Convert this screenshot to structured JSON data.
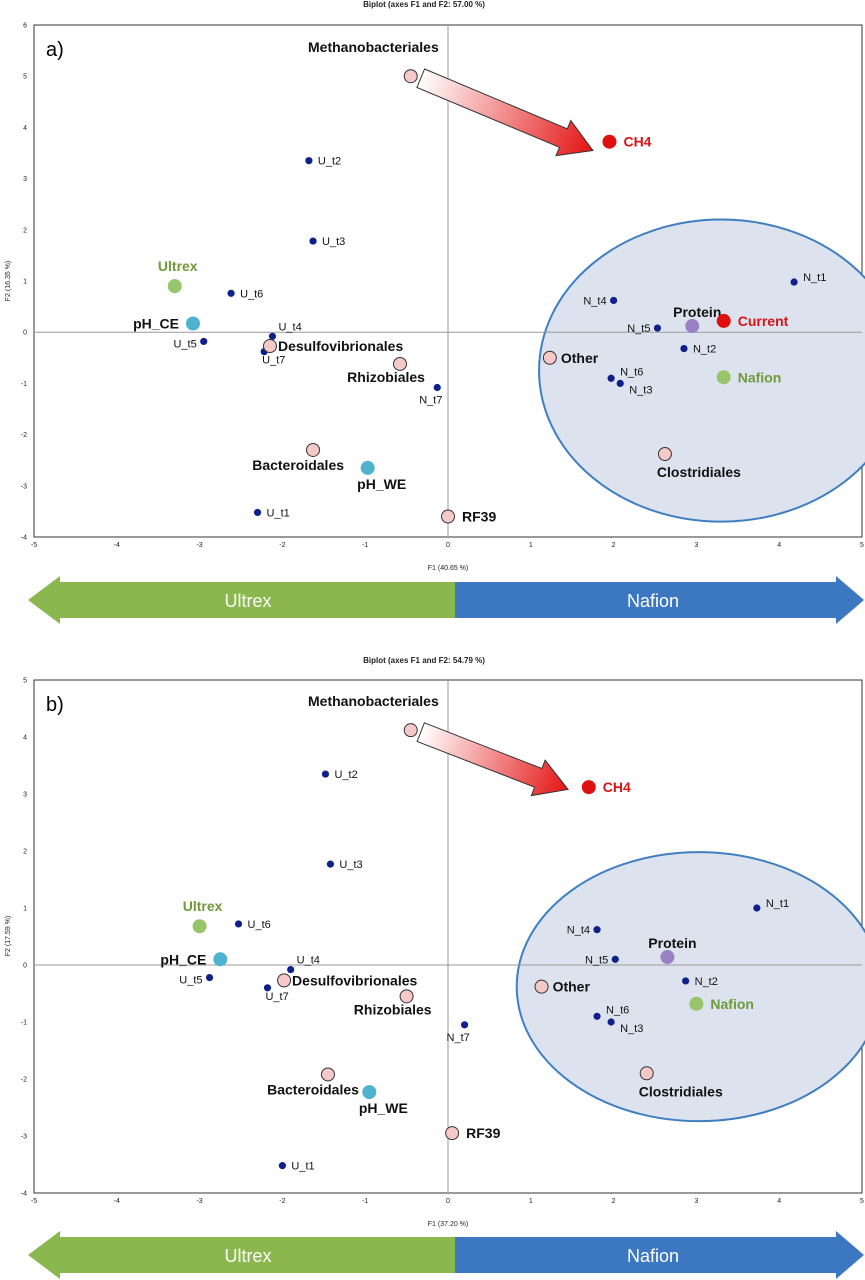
{
  "colors": {
    "green_marker": "#98c46a",
    "green_text": "#6f9a3a",
    "cyan_marker": "#4fb3cf",
    "red_marker": "#e01010",
    "red_text": "#d81414",
    "purple_marker": "#9a80c4",
    "pink_marker": "#f6c9c9",
    "observation": "#10208a",
    "band_left": "#8ab84e",
    "band_right": "#3c78c2",
    "ellipse_fill": "#dde3ee",
    "ellipse_stroke": "#3f7fbf"
  },
  "bands": [
    {
      "left_label": "Ultrex",
      "right_label": "Nafion"
    },
    {
      "left_label": "Ultrex",
      "right_label": "Nafion"
    }
  ],
  "chart_data": [
    {
      "type": "scatter",
      "panel_label": "a)",
      "title": "Biplot (axes F1 and F2: 57.00 %)",
      "xlabel": "F1 (40.65 %)",
      "ylabel": "F2 (16.35 %)",
      "xlim": [
        -5,
        5
      ],
      "ylim": [
        -4,
        6
      ],
      "xticks": [
        -5,
        -4,
        -3,
        -2,
        -1,
        0,
        1,
        2,
        3,
        4,
        5
      ],
      "yticks": [
        -4,
        -3,
        -2,
        -1,
        0,
        1,
        2,
        3,
        4,
        5,
        6
      ],
      "grid": false,
      "ellipse": {
        "cx": 3.3,
        "cy": -0.75,
        "rx": 2.2,
        "ry": 2.95
      },
      "arrow": {
        "from": [
          -0.45,
          5.0
        ],
        "to": [
          1.75,
          3.55
        ]
      },
      "observations": [
        {
          "label": "U_t2",
          "x": -1.68,
          "y": 3.35
        },
        {
          "label": "U_t3",
          "x": -1.63,
          "y": 1.78
        },
        {
          "label": "U_t6",
          "x": -2.62,
          "y": 0.76
        },
        {
          "label": "U_t4",
          "x": -2.12,
          "y": -0.08
        },
        {
          "label": "U_t5",
          "x": -2.95,
          "y": -0.18
        },
        {
          "label": "U_t7",
          "x": -2.22,
          "y": -0.38
        },
        {
          "label": "U_t1",
          "x": -2.3,
          "y": -3.52
        },
        {
          "label": "N_t7",
          "x": -0.13,
          "y": -1.08
        },
        {
          "label": "N_t1",
          "x": 4.18,
          "y": 0.98
        },
        {
          "label": "N_t4",
          "x": 2.0,
          "y": 0.62
        },
        {
          "label": "N_t5",
          "x": 2.53,
          "y": 0.08
        },
        {
          "label": "N_t2",
          "x": 2.85,
          "y": -0.32
        },
        {
          "label": "N_t6",
          "x": 1.97,
          "y": -0.9
        },
        {
          "label": "N_t3",
          "x": 2.08,
          "y": -1.0
        }
      ],
      "variables": [
        {
          "label": "Methanobacteriales",
          "x": -0.45,
          "y": 5.0,
          "kind": "pink"
        },
        {
          "label": "CH4",
          "x": 1.95,
          "y": 3.72,
          "kind": "red"
        },
        {
          "label": "Ultrex",
          "x": -3.3,
          "y": 0.9,
          "kind": "green"
        },
        {
          "label": "pH_CE",
          "x": -3.08,
          "y": 0.17,
          "kind": "cyan"
        },
        {
          "label": "Desulfovibrionales",
          "x": -2.15,
          "y": -0.27,
          "kind": "pink"
        },
        {
          "label": "Rhizobiales",
          "x": -0.58,
          "y": -0.62,
          "kind": "pink"
        },
        {
          "label": "Bacteroidales",
          "x": -1.63,
          "y": -2.3,
          "kind": "pink"
        },
        {
          "label": "pH_WE",
          "x": -0.97,
          "y": -2.65,
          "kind": "cyan"
        },
        {
          "label": "RF39",
          "x": 0.0,
          "y": -3.6,
          "kind": "pink"
        },
        {
          "label": "Other",
          "x": 1.23,
          "y": -0.5,
          "kind": "pink"
        },
        {
          "label": "Protein",
          "x": 2.95,
          "y": 0.12,
          "kind": "purple"
        },
        {
          "label": "Current",
          "x": 3.33,
          "y": 0.22,
          "kind": "red"
        },
        {
          "label": "Nafion",
          "x": 3.33,
          "y": -0.88,
          "kind": "green"
        },
        {
          "label": "Clostridiales",
          "x": 2.62,
          "y": -2.38,
          "kind": "pink"
        }
      ]
    },
    {
      "type": "scatter",
      "panel_label": "b)",
      "title": "Biplot (axes F1 and F2: 54.79 %)",
      "xlabel": "F1 (37.20 %)",
      "ylabel": "F2 (17.59 %)",
      "xlim": [
        -5,
        5
      ],
      "ylim": [
        -4,
        5
      ],
      "xticks": [
        -5,
        -4,
        -3,
        -2,
        -1,
        0,
        1,
        2,
        3,
        4,
        5
      ],
      "yticks": [
        -4,
        -3,
        -2,
        -1,
        0,
        1,
        2,
        3,
        4,
        5
      ],
      "grid": false,
      "ellipse": {
        "cx": 3.03,
        "cy": -0.38,
        "rx": 2.2,
        "ry": 2.36
      },
      "arrow": {
        "from": [
          -0.45,
          4.12
        ],
        "to": [
          1.45,
          3.08
        ]
      },
      "observations": [
        {
          "label": "U_t2",
          "x": -1.48,
          "y": 3.35
        },
        {
          "label": "U_t3",
          "x": -1.42,
          "y": 1.77
        },
        {
          "label": "U_t6",
          "x": -2.53,
          "y": 0.72
        },
        {
          "label": "U_t4",
          "x": -1.9,
          "y": -0.08
        },
        {
          "label": "U_t5",
          "x": -2.88,
          "y": -0.22
        },
        {
          "label": "U_t7",
          "x": -2.18,
          "y": -0.4
        },
        {
          "label": "U_t1",
          "x": -2.0,
          "y": -3.52
        },
        {
          "label": "N_t7",
          "x": 0.2,
          "y": -1.05
        },
        {
          "label": "N_t1",
          "x": 3.73,
          "y": 1.0
        },
        {
          "label": "N_t4",
          "x": 1.8,
          "y": 0.62
        },
        {
          "label": "N_t5",
          "x": 2.02,
          "y": 0.1
        },
        {
          "label": "N_t2",
          "x": 2.87,
          "y": -0.28
        },
        {
          "label": "N_t6",
          "x": 1.8,
          "y": -0.9
        },
        {
          "label": "N_t3",
          "x": 1.97,
          "y": -1.0
        }
      ],
      "variables": [
        {
          "label": "Methanobacteriales",
          "x": -0.45,
          "y": 4.12,
          "kind": "pink"
        },
        {
          "label": "CH4",
          "x": 1.7,
          "y": 3.12,
          "kind": "red"
        },
        {
          "label": "Ultrex",
          "x": -3.0,
          "y": 0.68,
          "kind": "green"
        },
        {
          "label": "pH_CE",
          "x": -2.75,
          "y": 0.1,
          "kind": "cyan"
        },
        {
          "label": "Desulfovibrionales",
          "x": -1.98,
          "y": -0.27,
          "kind": "pink"
        },
        {
          "label": "Rhizobiales",
          "x": -0.5,
          "y": -0.55,
          "kind": "pink"
        },
        {
          "label": "Bacteroidales",
          "x": -1.45,
          "y": -1.92,
          "kind": "pink"
        },
        {
          "label": "pH_WE",
          "x": -0.95,
          "y": -2.23,
          "kind": "cyan"
        },
        {
          "label": "RF39",
          "x": 0.05,
          "y": -2.95,
          "kind": "pink"
        },
        {
          "label": "Other",
          "x": 1.13,
          "y": -0.38,
          "kind": "pink"
        },
        {
          "label": "Protein",
          "x": 2.65,
          "y": 0.14,
          "kind": "purple"
        },
        {
          "label": "Nafion",
          "x": 3.0,
          "y": -0.68,
          "kind": "green"
        },
        {
          "label": "Clostridiales",
          "x": 2.4,
          "y": -1.9,
          "kind": "pink"
        }
      ]
    }
  ]
}
